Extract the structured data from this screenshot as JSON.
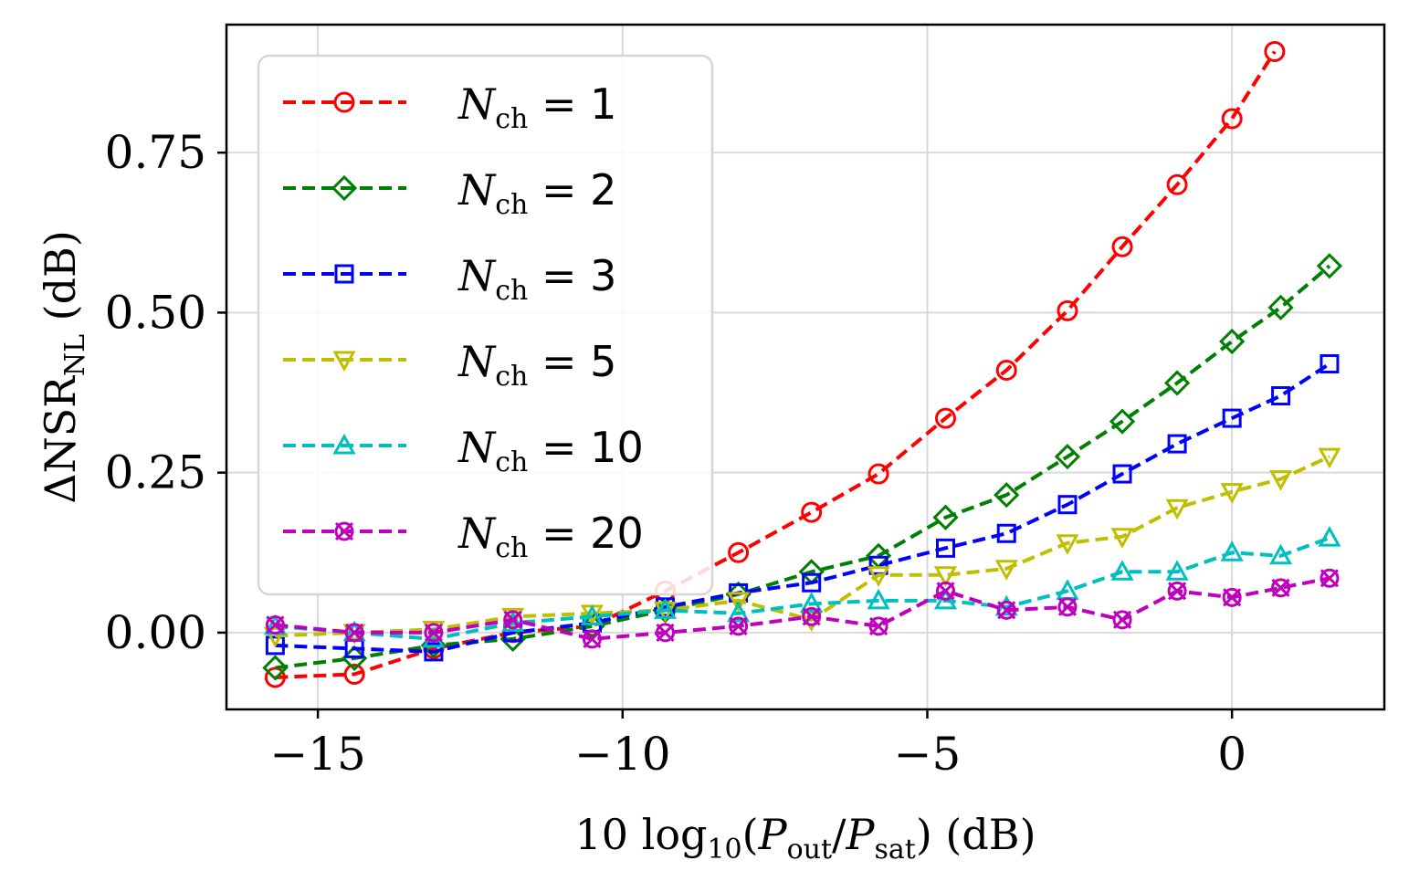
{
  "chart_data": {
    "type": "line",
    "title": "",
    "xlabel": "10 log₁₀(P_out/P_sat) (dB)",
    "ylabel": "ΔNSR_NL (dB)",
    "xlim": [
      -16.5,
      2.5
    ],
    "ylim": [
      -0.12,
      0.95
    ],
    "xticks": [
      -15,
      -10,
      -5,
      0
    ],
    "xtick_labels": [
      "−15",
      "−10",
      "−5",
      "0"
    ],
    "yticks": [
      0.0,
      0.25,
      0.5,
      0.75
    ],
    "ytick_labels": [
      "0.00",
      "0.25",
      "0.50",
      "0.75"
    ],
    "grid": true,
    "legend_position": "top-left",
    "series": [
      {
        "name": "N_ch = 1",
        "label_value": "1",
        "color": "#ff0000",
        "marker": "circle",
        "x": [
          -15.7,
          -14.4,
          -13.1,
          -11.8,
          -10.5,
          -9.3,
          -8.1,
          -6.9,
          -5.8,
          -4.7,
          -3.7,
          -2.7,
          -1.8,
          -0.9,
          0.0,
          0.7
        ],
        "y": [
          -0.07,
          -0.065,
          -0.025,
          0.0,
          0.01,
          0.065,
          0.125,
          0.188,
          0.248,
          0.335,
          0.41,
          0.503,
          0.603,
          0.7,
          0.803,
          0.908
        ]
      },
      {
        "name": "N_ch = 2",
        "label_value": "2",
        "color": "#008000",
        "marker": "diamond",
        "x": [
          -15.7,
          -14.4,
          -13.1,
          -11.8,
          -10.5,
          -9.3,
          -8.1,
          -6.9,
          -5.8,
          -4.7,
          -3.7,
          -2.7,
          -1.8,
          -0.9,
          0.0,
          0.8,
          1.6
        ],
        "y": [
          -0.055,
          -0.04,
          -0.02,
          -0.01,
          0.01,
          0.035,
          0.06,
          0.095,
          0.12,
          0.18,
          0.215,
          0.275,
          0.33,
          0.39,
          0.455,
          0.508,
          0.573
        ]
      },
      {
        "name": "N_ch = 3",
        "label_value": "3",
        "color": "#0000ff",
        "marker": "square",
        "x": [
          -15.7,
          -14.4,
          -13.1,
          -11.8,
          -10.5,
          -9.3,
          -8.1,
          -6.9,
          -5.8,
          -4.7,
          -3.7,
          -2.7,
          -1.8,
          -0.9,
          0.0,
          0.8,
          1.6
        ],
        "y": [
          -0.02,
          -0.025,
          -0.03,
          0.0,
          0.015,
          0.04,
          0.062,
          0.078,
          0.105,
          0.132,
          0.155,
          0.2,
          0.248,
          0.295,
          0.335,
          0.37,
          0.42
        ]
      },
      {
        "name": "N_ch = 5",
        "label_value": "5",
        "color": "#bfbf00",
        "marker": "triangle-down",
        "x": [
          -15.7,
          -14.4,
          -13.1,
          -11.8,
          -10.5,
          -9.3,
          -8.1,
          -6.9,
          -5.8,
          -4.7,
          -3.7,
          -2.7,
          -1.8,
          -0.9,
          0.0,
          0.8,
          1.6
        ],
        "y": [
          -0.005,
          0.0,
          0.005,
          0.025,
          0.03,
          0.035,
          0.05,
          0.02,
          0.09,
          0.09,
          0.1,
          0.14,
          0.15,
          0.195,
          0.22,
          0.24,
          0.275
        ]
      },
      {
        "name": "N_ch = 10",
        "label_value": "10",
        "color": "#00bfbf",
        "marker": "triangle-up",
        "x": [
          -15.7,
          -14.4,
          -13.1,
          -11.8,
          -10.5,
          -9.3,
          -8.1,
          -6.9,
          -5.8,
          -4.7,
          -3.7,
          -2.7,
          -1.8,
          -0.9,
          0.0,
          0.8,
          1.6
        ],
        "y": [
          0.01,
          0.0,
          -0.01,
          0.015,
          0.025,
          0.035,
          0.03,
          0.045,
          0.05,
          0.05,
          0.04,
          0.065,
          0.095,
          0.095,
          0.125,
          0.12,
          0.148
        ]
      },
      {
        "name": "N_ch = 20",
        "label_value": "20",
        "color": "#bf00bf",
        "marker": "x-circle",
        "x": [
          -15.7,
          -14.4,
          -13.1,
          -11.8,
          -10.5,
          -9.3,
          -8.1,
          -6.9,
          -5.8,
          -4.7,
          -3.7,
          -2.7,
          -1.8,
          -0.9,
          0.0,
          0.8,
          1.6
        ],
        "y": [
          0.012,
          0.0,
          0.0,
          0.02,
          -0.01,
          0.0,
          0.01,
          0.025,
          0.01,
          0.065,
          0.035,
          0.04,
          0.02,
          0.065,
          0.055,
          0.07,
          0.085
        ]
      }
    ]
  }
}
